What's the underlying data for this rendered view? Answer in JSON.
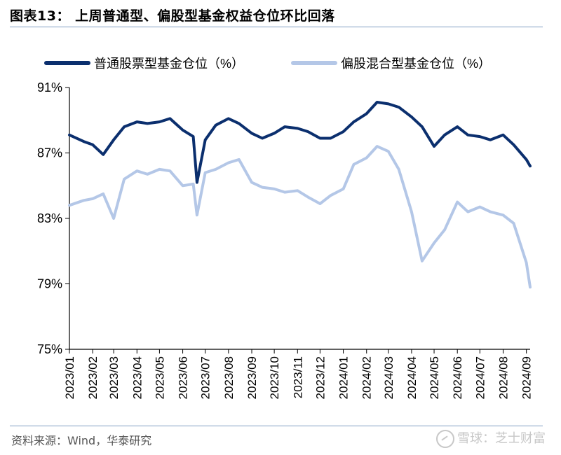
{
  "figure": {
    "label": "图表13：",
    "title": "上周普通型、偏股型基金权益仓位环比回落",
    "source": "资料来源：Wind，华泰研究",
    "watermark": "雪球：芝士财富"
  },
  "colors": {
    "series1": "#0b2f6e",
    "series2": "#b4c7e7",
    "axis": "#000000",
    "rule": "#7f9cc2"
  },
  "chart_data": {
    "type": "line",
    "title": "",
    "xlabel": "",
    "ylabel": "",
    "ylim": [
      75,
      91
    ],
    "yticks": [
      "75%",
      "79%",
      "83%",
      "87%",
      "91%"
    ],
    "ytick_values": [
      75,
      79,
      83,
      87,
      91
    ],
    "xticks": [
      "2023/01",
      "2023/02",
      "2023/03",
      "2023/04",
      "2023/05",
      "2023/06",
      "2023/07",
      "2023/08",
      "2023/09",
      "2023/10",
      "2023/11",
      "2023/12",
      "2024/01",
      "2024/02",
      "2024/03",
      "2024/04",
      "2024/05",
      "2024/06",
      "2024/07",
      "2024/08",
      "2024/09"
    ],
    "legend_position": "top",
    "grid": false,
    "x": [
      "2023-01-01",
      "2023-01-20",
      "2023-02-01",
      "2023-02-15",
      "2023-03-01",
      "2023-03-15",
      "2023-04-01",
      "2023-04-15",
      "2023-05-01",
      "2023-05-15",
      "2023-06-01",
      "2023-06-15",
      "2023-06-20",
      "2023-07-01",
      "2023-07-15",
      "2023-08-01",
      "2023-08-15",
      "2023-09-01",
      "2023-09-15",
      "2023-10-01",
      "2023-10-15",
      "2023-11-01",
      "2023-11-15",
      "2023-12-01",
      "2023-12-15",
      "2024-01-01",
      "2024-01-15",
      "2024-02-01",
      "2024-02-15",
      "2024-03-01",
      "2024-03-15",
      "2024-04-01",
      "2024-04-15",
      "2024-05-01",
      "2024-05-15",
      "2024-06-01",
      "2024-06-15",
      "2024-07-01",
      "2024-07-15",
      "2024-08-01",
      "2024-08-15",
      "2024-09-01",
      "2024-09-06"
    ],
    "series": [
      {
        "name": "普通股票型基金仓位（%）",
        "values": [
          88.1,
          87.7,
          87.5,
          86.9,
          87.8,
          88.6,
          88.9,
          88.8,
          88.9,
          89.1,
          88.4,
          88.0,
          85.2,
          87.8,
          88.7,
          89.1,
          88.8,
          88.2,
          87.9,
          88.2,
          88.6,
          88.5,
          88.3,
          87.9,
          87.9,
          88.3,
          88.9,
          89.4,
          90.1,
          90.0,
          89.8,
          89.2,
          88.6,
          87.4,
          88.1,
          88.6,
          88.1,
          88.0,
          87.8,
          88.1,
          87.5,
          86.6,
          86.2
        ]
      },
      {
        "name": "偏股混合型基金仓位（%）",
        "values": [
          83.8,
          84.1,
          84.2,
          84.5,
          83.0,
          85.4,
          85.9,
          85.7,
          86.0,
          85.9,
          85.0,
          85.1,
          83.2,
          85.8,
          86.0,
          86.4,
          86.6,
          85.2,
          84.9,
          84.8,
          84.6,
          84.7,
          84.3,
          83.9,
          84.4,
          84.8,
          86.3,
          86.7,
          87.4,
          87.1,
          86.0,
          83.4,
          80.4,
          81.5,
          82.3,
          84.0,
          83.4,
          83.7,
          83.4,
          83.2,
          82.7,
          80.3,
          78.8
        ]
      }
    ]
  }
}
